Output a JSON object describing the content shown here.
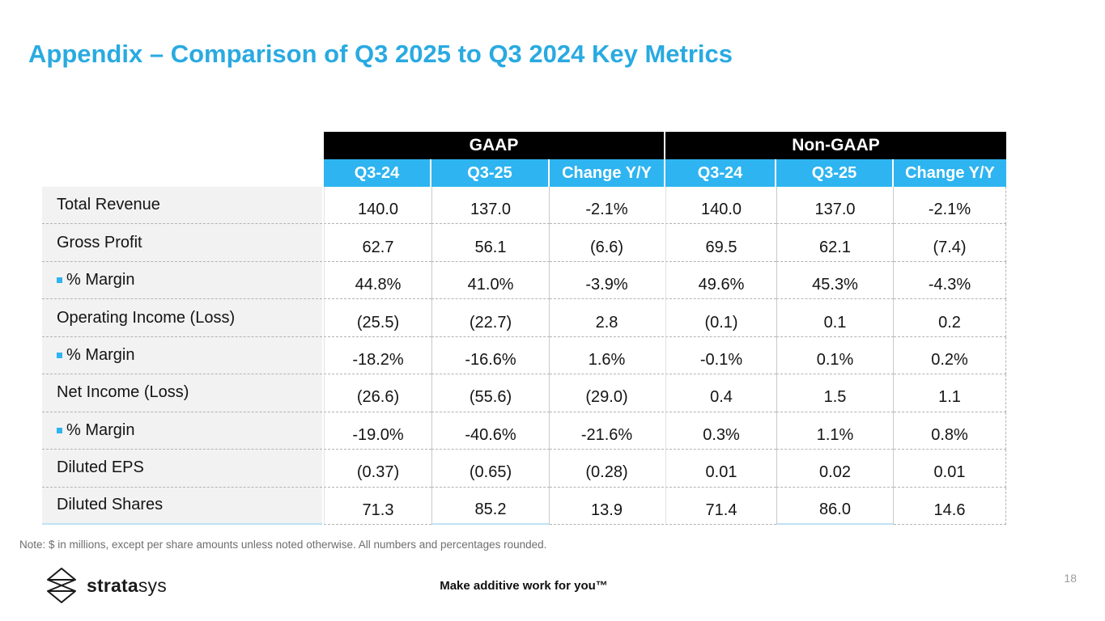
{
  "slide": {
    "title": "Appendix – Comparison of Q3 2025 to Q3 2024 Key Metrics",
    "note": "Note: $ in millions, except per share amounts unless noted otherwise. All numbers and percentages rounded.",
    "page_number": "18",
    "footer": {
      "logo_bold": "strata",
      "logo_light": "sys",
      "tagline": "Make additive work for you™"
    }
  },
  "colors": {
    "title_blue": "#29aae1",
    "header_cyan": "#2eb4f0",
    "header_black": "#000000",
    "label_bg": "#f2f2f2",
    "highlight_underline": "#bfe2f4"
  },
  "table": {
    "group_headers": [
      "GAAP",
      "Non-GAAP"
    ],
    "column_headers": [
      "Q3-24",
      "Q3-25",
      "Change Y/Y",
      "Q3-24",
      "Q3-25",
      "Change Y/Y"
    ],
    "rows": [
      {
        "label": "Total Revenue",
        "indent": false,
        "values": [
          "140.0",
          "137.0",
          "-2.1%",
          "140.0",
          "137.0",
          "-2.1%"
        ]
      },
      {
        "label": "Gross Profit",
        "indent": false,
        "values": [
          "62.7",
          "56.1",
          "(6.6)",
          "69.5",
          "62.1",
          "(7.4)"
        ]
      },
      {
        "label": "% Margin",
        "indent": true,
        "values": [
          "44.8%",
          "41.0%",
          "-3.9%",
          "49.6%",
          "45.3%",
          "-4.3%"
        ]
      },
      {
        "label": "Operating Income (Loss)",
        "indent": false,
        "values": [
          "(25.5)",
          "(22.7)",
          "2.8",
          "(0.1)",
          "0.1",
          "0.2"
        ]
      },
      {
        "label": "% Margin",
        "indent": true,
        "values": [
          "-18.2%",
          "-16.6%",
          "1.6%",
          "-0.1%",
          "0.1%",
          "0.2%"
        ]
      },
      {
        "label": "Net Income (Loss)",
        "indent": false,
        "values": [
          "(26.6)",
          "(55.6)",
          "(29.0)",
          "0.4",
          "1.5",
          "1.1"
        ]
      },
      {
        "label": "% Margin",
        "indent": true,
        "values": [
          "-19.0%",
          "-40.6%",
          "-21.6%",
          "0.3%",
          "1.1%",
          "0.8%"
        ]
      },
      {
        "label": "Diluted EPS",
        "indent": false,
        "values": [
          "(0.37)",
          "(0.65)",
          "(0.28)",
          "0.01",
          "0.02",
          "0.01"
        ]
      },
      {
        "label": "Diluted Shares",
        "indent": false,
        "values": [
          "71.3",
          "85.2",
          "13.9",
          "71.4",
          "86.0",
          "14.6"
        ]
      }
    ]
  }
}
